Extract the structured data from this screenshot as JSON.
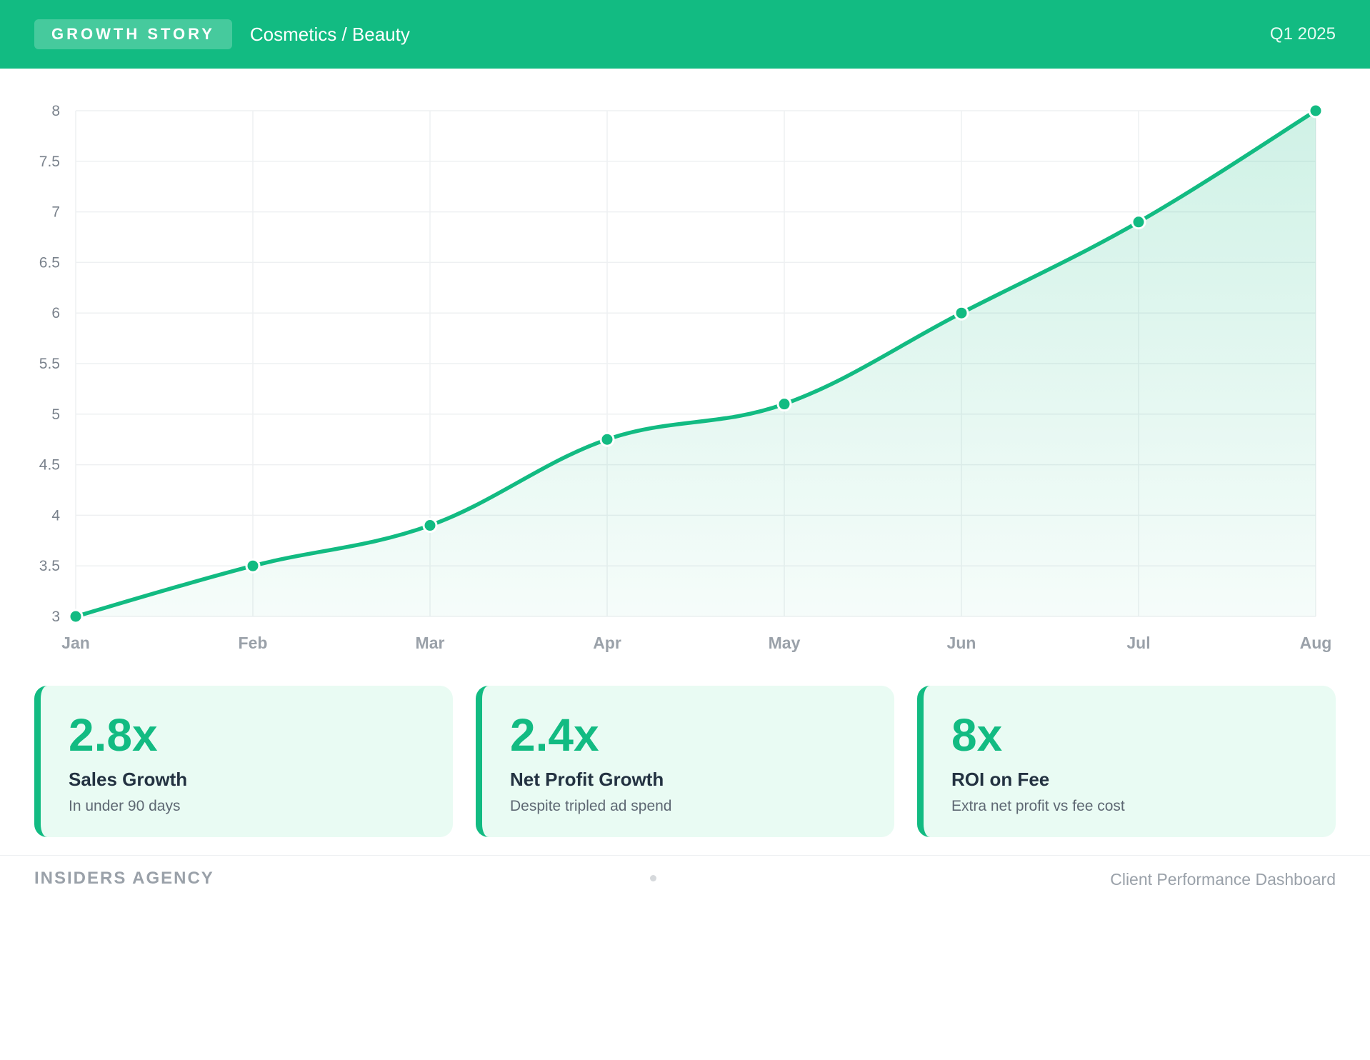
{
  "header": {
    "badge": "GROWTH STORY",
    "subtitle": "Cosmetics / Beauty",
    "period": "Q1 2025"
  },
  "chart_data": {
    "type": "area",
    "title": "",
    "xlabel": "",
    "ylabel": "",
    "categories": [
      "Jan",
      "Feb",
      "Mar",
      "Apr",
      "May",
      "Jun",
      "Jul",
      "Aug"
    ],
    "series": [
      {
        "values": [
          3.0,
          3.5,
          3.9,
          4.75,
          5.1,
          6.0,
          6.9,
          8.0
        ]
      }
    ],
    "ylim": [
      3,
      8
    ],
    "yticks": [
      "3",
      "3.5",
      "4",
      "4.5",
      "5",
      "5.5",
      "6",
      "6.5",
      "7",
      "7.5",
      "8"
    ],
    "grid": true,
    "line_color": "#12bb82"
  },
  "cards": [
    {
      "value": "2.8x",
      "label": "Sales Growth",
      "sub": "In under 90 days"
    },
    {
      "value": "2.4x",
      "label": "Net Profit Growth",
      "sub": "Despite tripled ad spend"
    },
    {
      "value": "8x",
      "label": "ROI on Fee",
      "sub": "Extra net profit vs fee cost"
    }
  ],
  "footer": {
    "left": "INSIDERS AGENCY",
    "right": "Client Performance Dashboard"
  },
  "colors": {
    "accent": "#12bb82",
    "card_bg": "#e9fbf3"
  }
}
